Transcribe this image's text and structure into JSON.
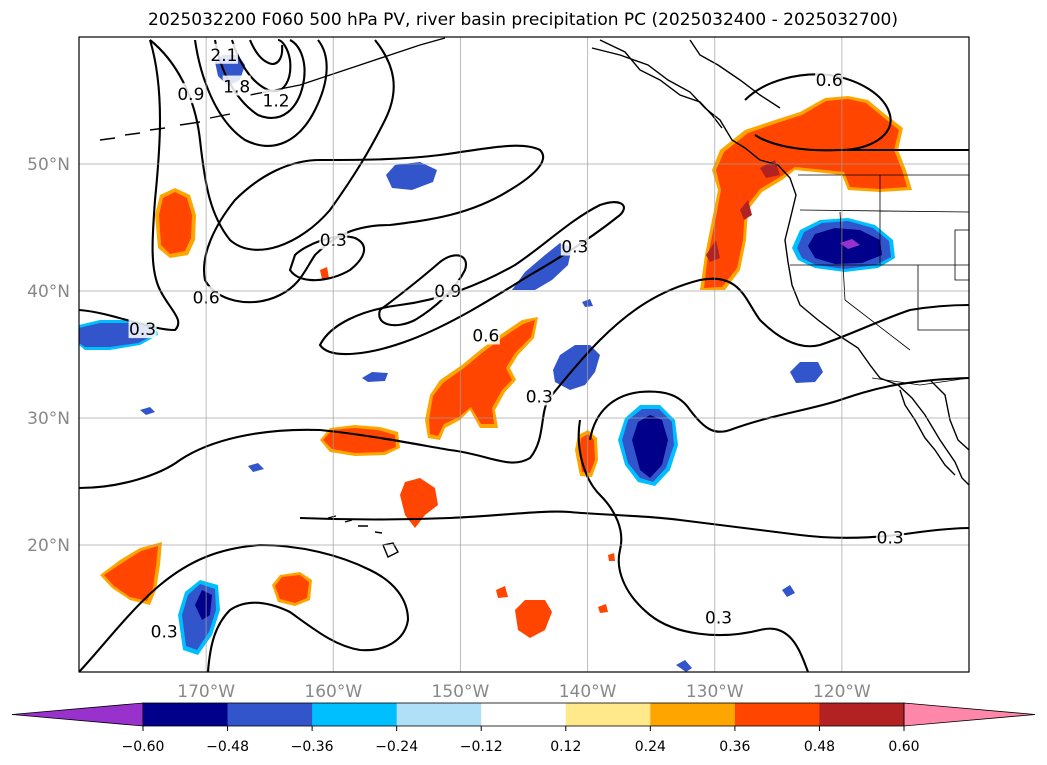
{
  "chart_data": {
    "type": "contour-map",
    "title": "2025032200 F060 500 hPa PV, river basin precipitation PC (2025032400 - 2025032700)",
    "projection": "PlateCarree",
    "lon_range": [
      -180,
      -110
    ],
    "lat_range": [
      10,
      60
    ],
    "grid": true,
    "lon_ticks": [
      {
        "value": -170,
        "label": "170°W"
      },
      {
        "value": -160,
        "label": "160°W"
      },
      {
        "value": -150,
        "label": "150°W"
      },
      {
        "value": -140,
        "label": "140°W"
      },
      {
        "value": -130,
        "label": "130°W"
      },
      {
        "value": -120,
        "label": "120°W"
      }
    ],
    "lat_ticks": [
      {
        "value": 20,
        "label": "20°N"
      },
      {
        "value": 30,
        "label": "30°N"
      },
      {
        "value": 40,
        "label": "40°N"
      },
      {
        "value": 50,
        "label": "50°N"
      }
    ],
    "colorbar": {
      "levels": [
        -0.6,
        -0.48,
        -0.36,
        -0.24,
        -0.12,
        0.12,
        0.24,
        0.36,
        0.48,
        0.6
      ],
      "tick_labels": [
        "−0.60",
        "−0.48",
        "−0.36",
        "−0.24",
        "−0.12",
        "0.12",
        "0.24",
        "0.36",
        "0.48",
        "0.60"
      ],
      "colors": [
        "#9932cc",
        "#00008b",
        "#3355cc",
        "#00bfff",
        "#b0e0f8",
        "#ffffff",
        "#ffe98a",
        "#ffa500",
        "#ff4500",
        "#b22222",
        "#ff88aa"
      ],
      "extend": "both"
    },
    "pv_contour_labels": [
      {
        "text": "2.1",
        "lon": -168.6,
        "lat": 58.6
      },
      {
        "text": "1.8",
        "lon": -167.6,
        "lat": 56.1
      },
      {
        "text": "1.2",
        "lon": -164.5,
        "lat": 55.0
      },
      {
        "text": "0.9",
        "lon": -171.2,
        "lat": 55.5
      },
      {
        "text": "0.6",
        "lon": -170.0,
        "lat": 39.5
      },
      {
        "text": "0.3",
        "lon": -175.0,
        "lat": 37.0
      },
      {
        "text": "0.3",
        "lon": -160.0,
        "lat": 44.0
      },
      {
        "text": "0.9",
        "lon": -151.0,
        "lat": 40.0
      },
      {
        "text": "0.6",
        "lon": -148.0,
        "lat": 36.5
      },
      {
        "text": "0.3",
        "lon": -141.0,
        "lat": 43.5
      },
      {
        "text": "0.3",
        "lon": -143.8,
        "lat": 31.7
      },
      {
        "text": "0.6",
        "lon": -121.0,
        "lat": 56.6
      },
      {
        "text": "0.3",
        "lon": -116.2,
        "lat": 20.6
      },
      {
        "text": "0.3",
        "lon": -173.3,
        "lat": 13.2
      },
      {
        "text": "0.3",
        "lon": -129.7,
        "lat": 14.3
      }
    ],
    "precip_pc_anomalies": [
      {
        "region": "Pacific Northwest / British Columbia coast",
        "sign": "positive",
        "peak": 0.48
      },
      {
        "region": "Nevada / Utah",
        "sign": "negative",
        "peak": -0.6
      },
      {
        "region": "Central Pacific near 27N 135W",
        "sign": "negative",
        "peak": -0.48
      },
      {
        "region": "Subtropical band 30-37N 150-145W",
        "sign": "positive",
        "peak": 0.36
      },
      {
        "region": "Near 47N 175W",
        "sign": "positive",
        "peak": 0.36
      },
      {
        "region": "Near 15N 170W",
        "sign": "negative",
        "peak": -0.48
      }
    ]
  }
}
